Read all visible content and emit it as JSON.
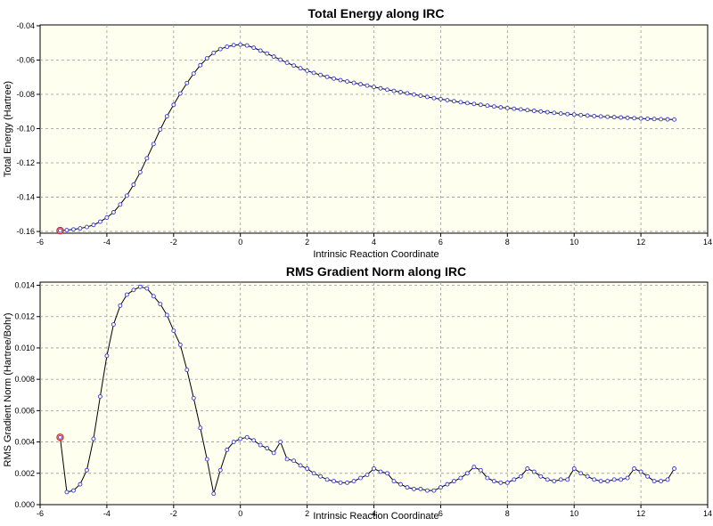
{
  "chart_data": [
    {
      "type": "line",
      "title": "Total Energy along IRC",
      "xlabel": "Intrinsic Reaction Coordinate",
      "ylabel": "Total Energy (Hartree)",
      "xlim": [
        -6,
        14
      ],
      "ylim": [
        -0.161,
        -0.0395
      ],
      "xticks": [
        -6,
        -4,
        -2,
        0,
        2,
        4,
        6,
        8,
        10,
        12,
        14
      ],
      "yticks": [
        -0.04,
        -0.06,
        -0.08,
        -0.1,
        -0.12,
        -0.14,
        -0.16
      ],
      "xtick_labels": [
        "-6",
        "-4",
        "-2",
        "0",
        "2",
        "4",
        "6",
        "8",
        "10",
        "12",
        "14"
      ],
      "ytick_labels": [
        "-0.04",
        "-0.06",
        "-0.08",
        "-0.10",
        "-0.12",
        "-0.14",
        "-0.16"
      ],
      "grid": true,
      "line_color": "#000000",
      "marker_color": "#3a3acc",
      "highlight_color": "#cc2222",
      "highlight_index": 0,
      "series": [
        {
          "x": [
            -5.4,
            -5.2,
            -5.0,
            -4.8,
            -4.6,
            -4.4,
            -4.2,
            -4.0,
            -3.8,
            -3.6,
            -3.4,
            -3.2,
            -3.0,
            -2.8,
            -2.6,
            -2.4,
            -2.2,
            -2.0,
            -1.8,
            -1.6,
            -1.4,
            -1.2,
            -1.0,
            -0.8,
            -0.6,
            -0.4,
            -0.2,
            0.0,
            0.2,
            0.4,
            0.6,
            0.8,
            1.0,
            1.2,
            1.4,
            1.6,
            1.8,
            2.0,
            2.2,
            2.4,
            2.6,
            2.8,
            3.0,
            3.2,
            3.4,
            3.6,
            3.8,
            4.0,
            4.2,
            4.4,
            4.6,
            4.8,
            5.0,
            5.2,
            5.4,
            5.6,
            5.8,
            6.0,
            6.2,
            6.4,
            6.6,
            6.8,
            7.0,
            7.2,
            7.4,
            7.6,
            7.8,
            8.0,
            8.2,
            8.4,
            8.6,
            8.8,
            9.0,
            9.2,
            9.4,
            9.6,
            9.8,
            10.0,
            10.2,
            10.4,
            10.6,
            10.8,
            11.0,
            11.2,
            11.4,
            11.6,
            11.8,
            12.0,
            12.2,
            12.4,
            12.6,
            12.8,
            13.0
          ],
          "values": [
            -0.1595,
            -0.1592,
            -0.1588,
            -0.1582,
            -0.1574,
            -0.1562,
            -0.1543,
            -0.1519,
            -0.1488,
            -0.1443,
            -0.1391,
            -0.1327,
            -0.1254,
            -0.1173,
            -0.109,
            -0.1005,
            -0.0928,
            -0.0861,
            -0.0795,
            -0.0734,
            -0.0679,
            -0.063,
            -0.059,
            -0.0558,
            -0.0536,
            -0.0522,
            -0.0513,
            -0.051,
            -0.0515,
            -0.0528,
            -0.0545,
            -0.0562,
            -0.058,
            -0.0598,
            -0.0616,
            -0.0632,
            -0.0648,
            -0.0662,
            -0.0675,
            -0.0687,
            -0.0698,
            -0.0708,
            -0.0717,
            -0.0725,
            -0.0733,
            -0.0741,
            -0.0749,
            -0.0757,
            -0.0765,
            -0.0773,
            -0.078,
            -0.0787,
            -0.0794,
            -0.0801,
            -0.0808,
            -0.0815,
            -0.0822,
            -0.0828,
            -0.0834,
            -0.084,
            -0.0846,
            -0.0851,
            -0.0856,
            -0.0861,
            -0.0866,
            -0.0871,
            -0.0876,
            -0.088,
            -0.0884,
            -0.0888,
            -0.0892,
            -0.0896,
            -0.09,
            -0.0904,
            -0.0908,
            -0.0912,
            -0.0915,
            -0.0918,
            -0.0921,
            -0.0924,
            -0.0927,
            -0.0929,
            -0.0931,
            -0.0933,
            -0.0935,
            -0.0937,
            -0.0939,
            -0.0941,
            -0.0943,
            -0.0944,
            -0.0945,
            -0.0946,
            -0.0947
          ]
        }
      ]
    },
    {
      "type": "line",
      "title": "RMS Gradient Norm along IRC",
      "xlabel": "Intrinsic Reaction Coordinate",
      "ylabel": "RMS Gradient Norm (Hartree/Bohr)",
      "xlim": [
        -6,
        14
      ],
      "ylim": [
        0.0,
        0.0142
      ],
      "xticks": [
        -6,
        -4,
        -2,
        0,
        2,
        4,
        6,
        8,
        10,
        12,
        14
      ],
      "yticks": [
        0.0,
        0.002,
        0.004,
        0.006,
        0.008,
        0.01,
        0.012,
        0.014
      ],
      "xtick_labels": [
        "-6",
        "-4",
        "-2",
        "0",
        "2",
        "4",
        "6",
        "8",
        "10",
        "12",
        "14"
      ],
      "ytick_labels": [
        "0.000",
        "0.002",
        "0.004",
        "0.006",
        "0.008",
        "0.010",
        "0.012",
        "0.014"
      ],
      "grid": true,
      "line_color": "#000000",
      "marker_color": "#3a3acc",
      "highlight_color": "#cc2222",
      "highlight_index": 0,
      "series": [
        {
          "x": [
            -5.4,
            -5.2,
            -5.0,
            -4.8,
            -4.6,
            -4.4,
            -4.2,
            -4.0,
            -3.8,
            -3.6,
            -3.4,
            -3.2,
            -3.0,
            -2.8,
            -2.6,
            -2.4,
            -2.2,
            -2.0,
            -1.8,
            -1.6,
            -1.4,
            -1.2,
            -1.0,
            -0.8,
            -0.6,
            -0.4,
            -0.2,
            0.0,
            0.2,
            0.4,
            0.6,
            0.8,
            1.0,
            1.2,
            1.4,
            1.6,
            1.8,
            2.0,
            2.2,
            2.4,
            2.6,
            2.8,
            3.0,
            3.2,
            3.4,
            3.6,
            3.8,
            4.0,
            4.2,
            4.4,
            4.6,
            4.8,
            5.0,
            5.2,
            5.4,
            5.6,
            5.8,
            6.0,
            6.2,
            6.4,
            6.6,
            6.8,
            7.0,
            7.2,
            7.4,
            7.6,
            7.8,
            8.0,
            8.2,
            8.4,
            8.6,
            8.8,
            9.0,
            9.2,
            9.4,
            9.6,
            9.8,
            10.0,
            10.2,
            10.4,
            10.6,
            10.8,
            11.0,
            11.2,
            11.4,
            11.6,
            11.8,
            12.0,
            12.2,
            12.4,
            12.6,
            12.8,
            13.0
          ],
          "values": [
            0.0043,
            0.0008,
            0.0009,
            0.0013,
            0.0022,
            0.0042,
            0.0069,
            0.0095,
            0.0115,
            0.0127,
            0.0134,
            0.0137,
            0.0139,
            0.0138,
            0.0133,
            0.0128,
            0.0121,
            0.0111,
            0.0102,
            0.0086,
            0.0068,
            0.0049,
            0.0029,
            0.0007,
            0.0022,
            0.0035,
            0.004,
            0.0042,
            0.0043,
            0.0041,
            0.0038,
            0.0036,
            0.0033,
            0.004,
            0.0029,
            0.0028,
            0.0025,
            0.0023,
            0.002,
            0.0018,
            0.0016,
            0.0015,
            0.0014,
            0.0014,
            0.0015,
            0.0017,
            0.0019,
            0.0023,
            0.0021,
            0.002,
            0.0015,
            0.0013,
            0.0011,
            0.001,
            0.001,
            0.0009,
            0.0009,
            0.0011,
            0.0013,
            0.0015,
            0.0017,
            0.002,
            0.0024,
            0.0022,
            0.0017,
            0.0015,
            0.0014,
            0.0014,
            0.0016,
            0.0018,
            0.0023,
            0.0021,
            0.0018,
            0.0016,
            0.0015,
            0.0016,
            0.0016,
            0.0023,
            0.002,
            0.0018,
            0.0016,
            0.0015,
            0.0015,
            0.0016,
            0.0016,
            0.0017,
            0.0023,
            0.0021,
            0.0018,
            0.0015,
            0.0015,
            0.0016,
            0.0023
          ]
        }
      ]
    }
  ]
}
